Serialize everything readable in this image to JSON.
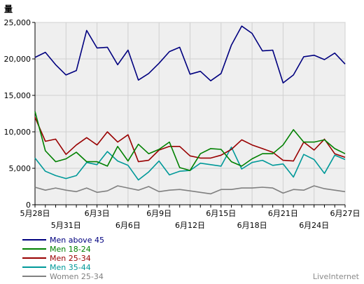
{
  "chart_data": {
    "type": "line",
    "ylabel": "量",
    "ylim": [
      0,
      25000
    ],
    "yticks": [
      0,
      5000,
      10000,
      15000,
      20000,
      25000
    ],
    "ytick_labels": [
      "0",
      "5,000",
      "10,000",
      "15,000",
      "20,000",
      "25,000"
    ],
    "x": [
      "5月28日",
      "5月29日",
      "5月30日",
      "5月31日",
      "6月1日",
      "6月2日",
      "6月3日",
      "6月4日",
      "6月5日",
      "6月6日",
      "6月7日",
      "6月8日",
      "6月9日",
      "6月10日",
      "6月11日",
      "6月12日",
      "6月13日",
      "6月14日",
      "6月15日",
      "6月16日",
      "6月17日",
      "6月18日",
      "6月19日",
      "6月20日",
      "6月21日",
      "6月22日",
      "6月23日",
      "6月24日",
      "6月25日",
      "6月26日",
      "6月27日"
    ],
    "xtick_labels_upper": [
      "5月28日",
      "6月3日",
      "6月9日",
      "6月15日",
      "6月21日",
      "6月27日"
    ],
    "xtick_labels_lower": [
      "5月31日",
      "6月6日",
      "6月12日",
      "6月18日",
      "6月24日"
    ],
    "grid": true,
    "legend_position": "bottom-left",
    "series": [
      {
        "name": "Men above 45",
        "color": "#00007f",
        "values": [
          20200,
          20900,
          19200,
          17800,
          18400,
          23900,
          21500,
          21600,
          19200,
          21200,
          17100,
          18000,
          19400,
          21000,
          21600,
          17900,
          18300,
          17000,
          18000,
          21900,
          24500,
          23500,
          21100,
          21200,
          16700,
          17800,
          20300,
          20500,
          19900,
          20800,
          19300
        ]
      },
      {
        "name": "Men 18-24",
        "color": "#008000",
        "values": [
          12800,
          7400,
          5900,
          6300,
          7200,
          5900,
          5900,
          5300,
          8000,
          6000,
          8300,
          7000,
          7600,
          8600,
          5100,
          4700,
          7000,
          7700,
          7600,
          5900,
          5300,
          6300,
          7000,
          7000,
          8200,
          10300,
          8600,
          8600,
          8900,
          7700,
          7000
        ]
      },
      {
        "name": "Men 25-34",
        "color": "#990000",
        "values": [
          12000,
          8700,
          9000,
          6900,
          8200,
          9200,
          8200,
          10000,
          8600,
          9600,
          5900,
          6100,
          7500,
          8000,
          8000,
          6700,
          6400,
          6400,
          6800,
          7600,
          8900,
          8200,
          7700,
          7200,
          6100,
          6000,
          8600,
          7500,
          9000,
          7000,
          6500
        ]
      },
      {
        "name": "Men 35-44",
        "color": "#009999",
        "values": [
          6400,
          4600,
          4000,
          3600,
          4000,
          5800,
          5500,
          7300,
          6000,
          5400,
          3400,
          4500,
          6000,
          4100,
          4600,
          4700,
          5700,
          5500,
          5300,
          7900,
          4900,
          5800,
          6100,
          5400,
          5600,
          3800,
          6900,
          6200,
          4300,
          6800,
          6200
        ]
      },
      {
        "name": "Women 25-34",
        "color": "#808080",
        "values": [
          2400,
          2000,
          2300,
          2000,
          1800,
          2300,
          1700,
          1900,
          2600,
          2300,
          2000,
          2500,
          1800,
          2000,
          2100,
          1900,
          1700,
          1500,
          2100,
          2100,
          2300,
          2300,
          2400,
          2300,
          1600,
          2100,
          2000,
          2600,
          2200,
          2000,
          1800
        ]
      }
    ]
  },
  "watermark": "LiveInternet"
}
